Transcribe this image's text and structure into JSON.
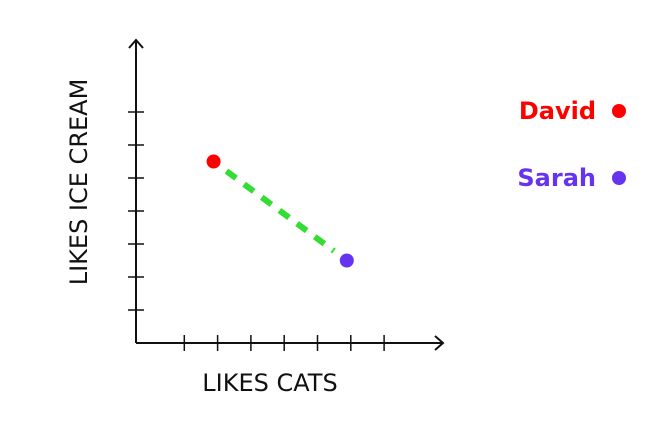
{
  "chart_data": {
    "type": "scatter",
    "xlabel": "LIKES CATS",
    "ylabel": "LIKES ICE CREAM",
    "xlim": [
      0,
      9
    ],
    "ylim": [
      0,
      9
    ],
    "x_ticks": [
      1,
      2,
      3,
      4,
      5,
      6,
      7
    ],
    "y_ticks": [
      1,
      2,
      3,
      4,
      5,
      6,
      7
    ],
    "grid": false,
    "legend_position": "right",
    "series": [
      {
        "name": "David",
        "color": "#ff0000",
        "x": 2.33,
        "y": 5.5
      },
      {
        "name": "Sarah",
        "color": "#6633ee",
        "x": 6.33,
        "y": 2.5
      }
    ],
    "connector": {
      "style": "dashed",
      "color": "#33dd33"
    }
  }
}
